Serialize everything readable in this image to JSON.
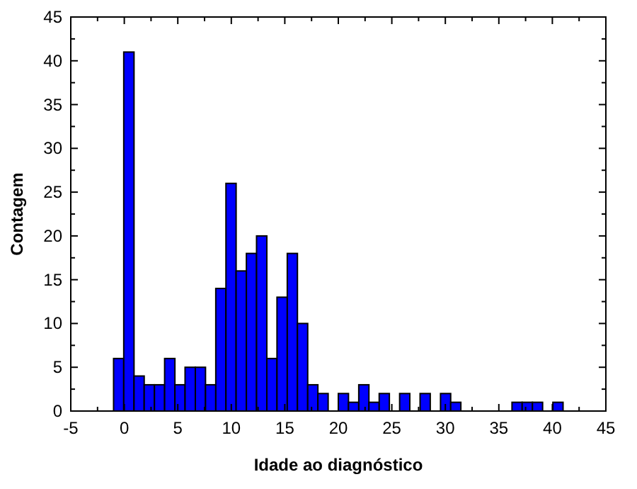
{
  "chart_data": {
    "type": "histogram",
    "xlabel": "Idade ao diagnóstico",
    "ylabel": "Contagem",
    "color": "#0000ff",
    "bins": [
      -1,
      -0.05,
      0.91,
      1.86,
      2.82,
      3.77,
      4.73,
      5.68,
      6.64,
      7.59,
      8.55,
      9.5,
      10.45,
      11.41,
      12.36,
      13.32,
      14.27,
      15.23,
      16.18,
      17.14,
      18.09,
      19.05,
      20,
      20.95,
      21.91,
      22.86,
      23.82,
      24.77,
      25.73,
      26.68,
      27.64,
      28.59,
      29.55,
      30.5,
      31.45,
      32.41,
      33.36,
      34.32,
      35.27,
      36.23,
      37.18,
      38.14,
      39.09,
      40.05,
      41
    ],
    "values": [
      6,
      41,
      4,
      3,
      3,
      6,
      3,
      5,
      5,
      3,
      14,
      26,
      16,
      18,
      20,
      6,
      13,
      18,
      10,
      3,
      2,
      0,
      2,
      1,
      3,
      1,
      2,
      0,
      2,
      0,
      2,
      0,
      2,
      1,
      0,
      0,
      0,
      0,
      0,
      1,
      1,
      1,
      0,
      1
    ],
    "xlim": [
      -5,
      45
    ],
    "xticks": [
      -5,
      0,
      5,
      10,
      15,
      20,
      25,
      30,
      35,
      40,
      45
    ],
    "ylim": [
      0,
      45
    ],
    "yticks": [
      0,
      5,
      10,
      15,
      20,
      25,
      30,
      35,
      40,
      45
    ],
    "grid": false
  }
}
